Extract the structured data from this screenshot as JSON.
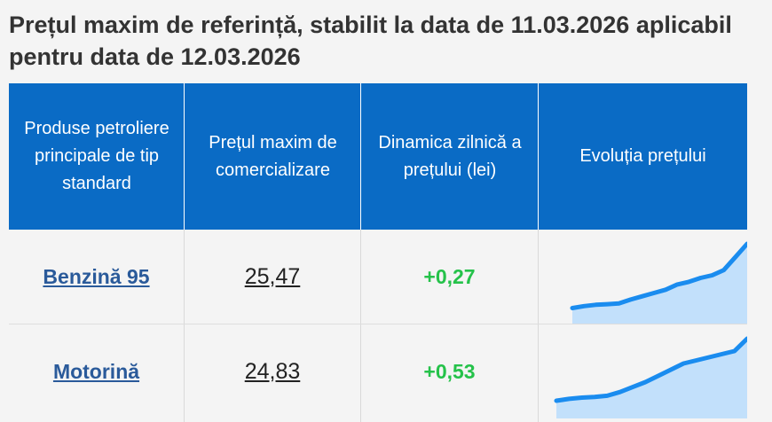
{
  "header": {
    "title": "Prețul maxim de referință, stabilit la data de 11.03.2026 aplicabil pentru data de 12.03.2026"
  },
  "table": {
    "columns": [
      "Produse petroliere principale de tip standard",
      "Prețul maxim de comercializare",
      "Dinamica zilnică a prețului (lei)",
      "Evoluția prețului"
    ],
    "rows": [
      {
        "product": "Benzină 95",
        "price": "25,47",
        "change": "+0,27",
        "trend": [
          0.02,
          0.05,
          0.07,
          0.08,
          0.09,
          0.15,
          0.2,
          0.25,
          0.3,
          0.38,
          0.42,
          0.48,
          0.52,
          0.6,
          0.8,
          1.0
        ]
      },
      {
        "product": "Motorină",
        "price": "24,83",
        "change": "+0,53",
        "trend": [
          0.0,
          0.03,
          0.05,
          0.06,
          0.08,
          0.14,
          0.22,
          0.3,
          0.4,
          0.5,
          0.6,
          0.65,
          0.7,
          0.75,
          0.8,
          1.0
        ]
      }
    ]
  },
  "colors": {
    "header_bg": "#0a6bc5",
    "link": "#2a5a9a",
    "positive": "#25c24a",
    "sparkline": "#1a8cef",
    "sparkline_fill": "#b9dcfb"
  }
}
